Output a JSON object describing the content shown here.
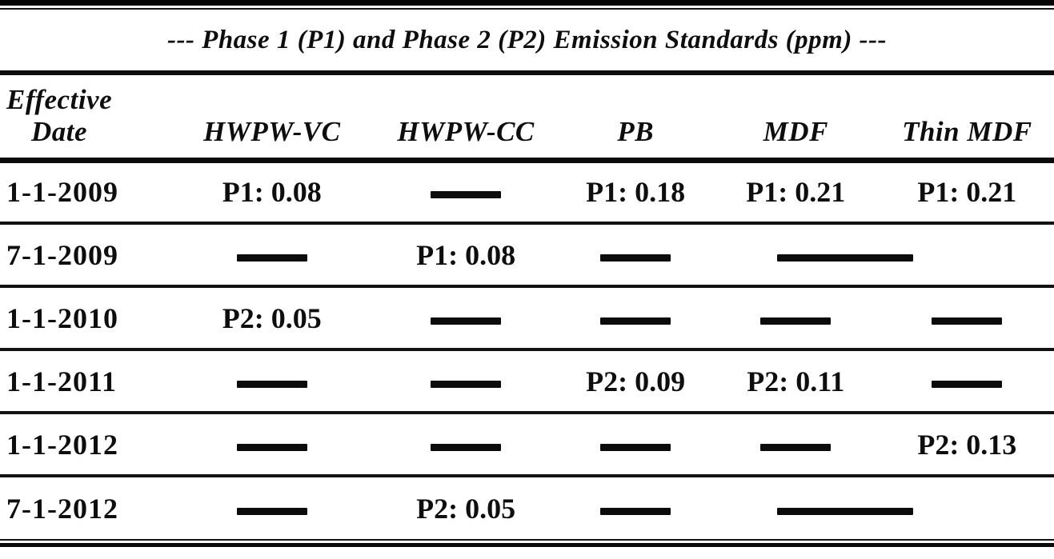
{
  "page": {
    "background_color": "#fdfdfc",
    "ink_color": "#161616"
  },
  "table": {
    "title": "--- Phase 1 (P1) and Phase 2 (P2) Emission Standards (ppm) ---",
    "columns": [
      "Effective\nDate",
      "HWPW-VC",
      "HWPW-CC",
      "PB",
      "MDF",
      "Thin MDF"
    ],
    "rows": [
      {
        "date": "1-1-2009",
        "cells": [
          {
            "text": "P1: 0.08"
          },
          {
            "dash": "short"
          },
          {
            "text": "P1: 0.18"
          },
          {
            "text": "P1: 0.21"
          },
          {
            "text": "P1: 0.21"
          }
        ]
      },
      {
        "date": "7-1-2009",
        "cells": [
          {
            "dash": "short"
          },
          {
            "text": "P1: 0.08"
          },
          {
            "dash": "short"
          },
          {
            "dash": "long",
            "span": 2
          }
        ]
      },
      {
        "date": "1-1-2010",
        "cells": [
          {
            "text": "P2: 0.05"
          },
          {
            "dash": "short"
          },
          {
            "dash": "short"
          },
          {
            "dash": "short"
          },
          {
            "dash": "short"
          }
        ]
      },
      {
        "date": "1-1-2011",
        "cells": [
          {
            "dash": "short"
          },
          {
            "dash": "short"
          },
          {
            "text": "P2: 0.09"
          },
          {
            "text": "P2: 0.11"
          },
          {
            "dash": "short"
          }
        ]
      },
      {
        "date": "1-1-2012",
        "cells": [
          {
            "dash": "short"
          },
          {
            "dash": "short"
          },
          {
            "dash": "short"
          },
          {
            "dash": "short"
          },
          {
            "text": "P2: 0.13"
          }
        ]
      },
      {
        "date": "7-1-2012",
        "cells": [
          {
            "dash": "short"
          },
          {
            "text": "P2: 0.05"
          },
          {
            "dash": "short"
          },
          {
            "dash": "long",
            "span": 2
          }
        ]
      }
    ]
  }
}
